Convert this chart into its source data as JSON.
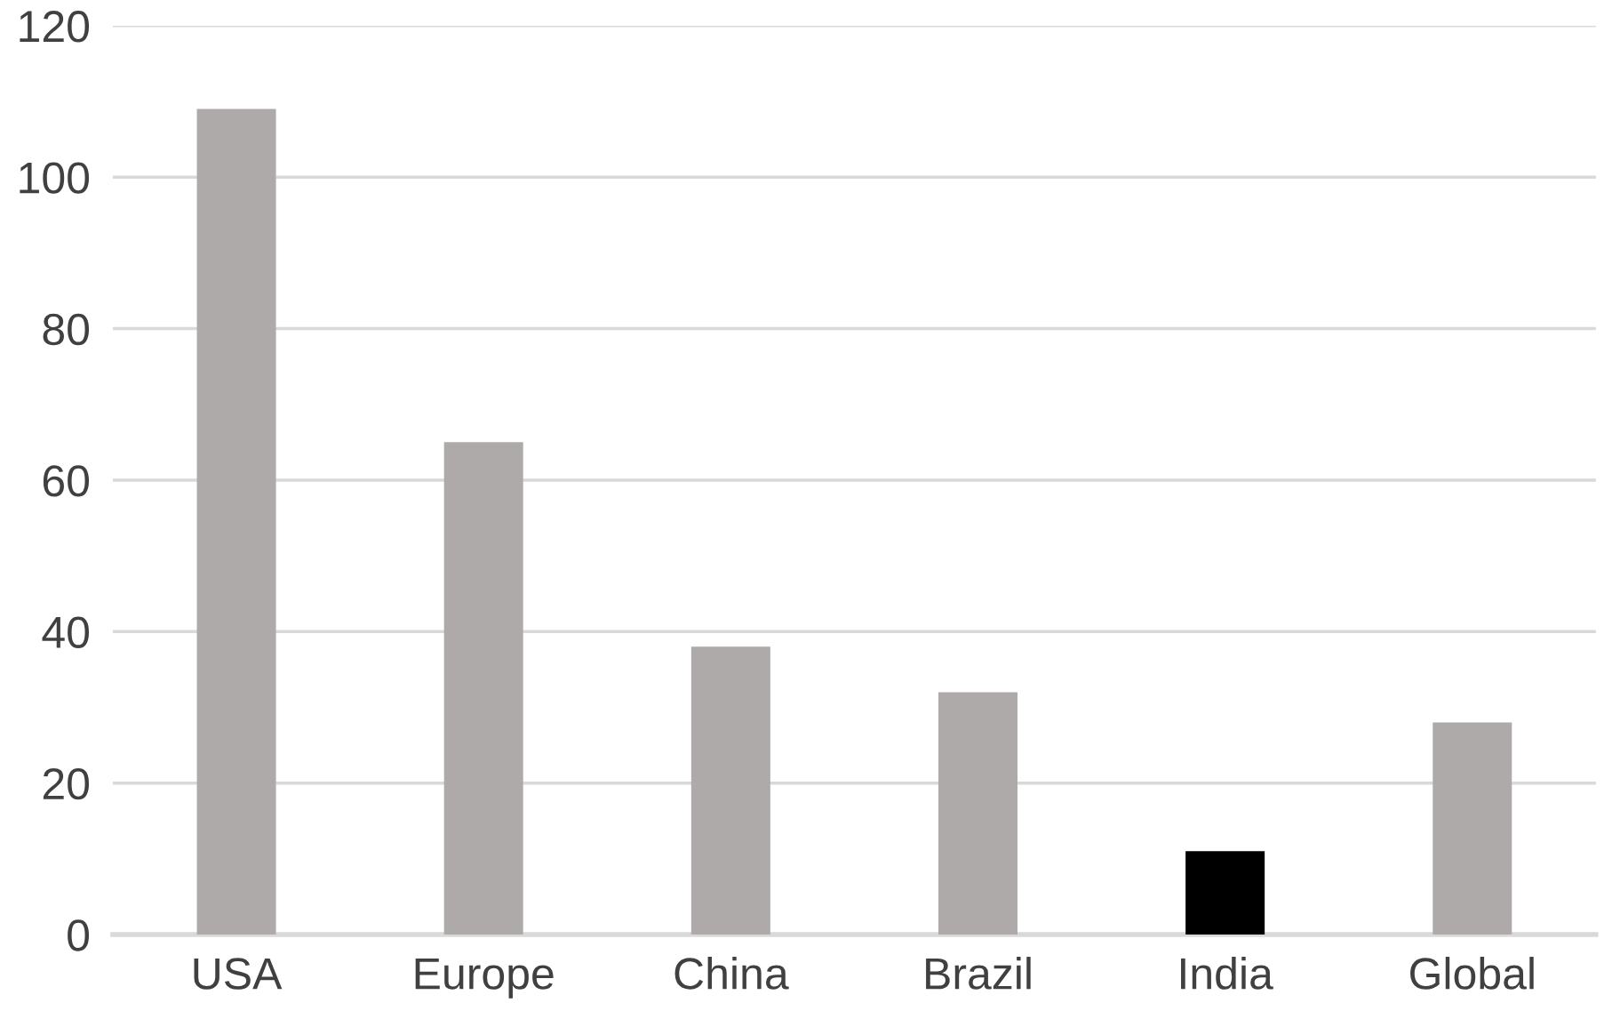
{
  "chart_data": {
    "type": "bar",
    "categories": [
      "USA",
      "Europe",
      "China",
      "Brazil",
      "India",
      "Global"
    ],
    "values": [
      109,
      65,
      38,
      32,
      11,
      28
    ],
    "colors": [
      "#aeaaaa",
      "#aeaaaa",
      "#aeaaaa",
      "#aeaaaa",
      "#000000",
      "#aeaaaa"
    ],
    "ylim": [
      0,
      120
    ],
    "yticks": [
      0,
      20,
      40,
      60,
      80,
      100,
      120
    ],
    "grid": "y",
    "legend": false
  }
}
